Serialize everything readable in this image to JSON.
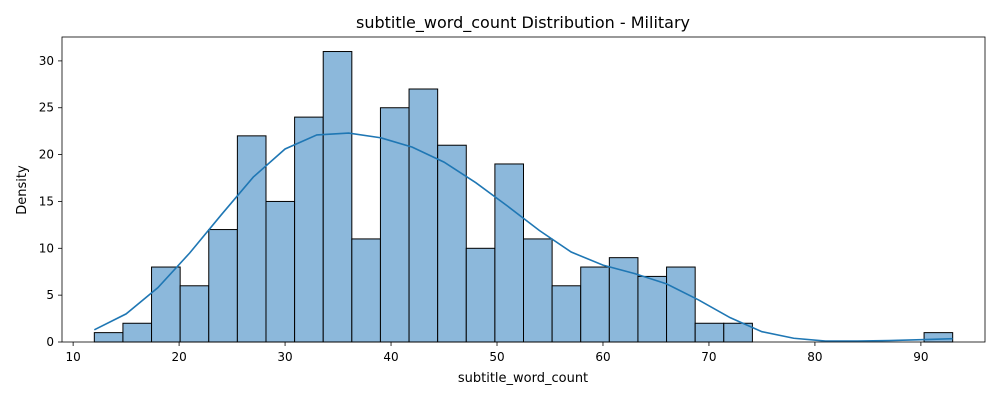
{
  "chart_data": {
    "type": "bar",
    "title": "subtitle_word_count Distribution - Military",
    "xlabel": "subtitle_word_count",
    "ylabel": "Density",
    "xlim": [
      8.95,
      96.05
    ],
    "ylim": [
      0,
      32.55
    ],
    "xticks": [
      10,
      20,
      30,
      40,
      50,
      60,
      70,
      80,
      90
    ],
    "yticks": [
      0,
      5,
      10,
      15,
      20,
      25,
      30
    ],
    "bin_start": 12,
    "bin_width": 2.7,
    "values": [
      1,
      2,
      8,
      6,
      12,
      22,
      15,
      24,
      31,
      11,
      25,
      27,
      21,
      10,
      19,
      11,
      6,
      8,
      9,
      7,
      8,
      2,
      2,
      0,
      0,
      0,
      0,
      0,
      0,
      1
    ],
    "kde": {
      "x": [
        12,
        15,
        18,
        21,
        24,
        27,
        30,
        33,
        36,
        39,
        42,
        45,
        48,
        51,
        54,
        57,
        60,
        63,
        66,
        69,
        72,
        75,
        78,
        81,
        84,
        87,
        90,
        93
      ],
      "y": [
        1.3,
        3.0,
        5.8,
        9.5,
        13.6,
        17.6,
        20.6,
        22.1,
        22.3,
        21.8,
        20.8,
        19.2,
        17.0,
        14.5,
        11.9,
        9.6,
        8.2,
        7.3,
        6.2,
        4.5,
        2.6,
        1.1,
        0.4,
        0.1,
        0.1,
        0.15,
        0.25,
        0.35
      ]
    },
    "colors": {
      "bar": "#8cb8db",
      "edge": "#000000",
      "kde": "#1f77b4"
    },
    "grid": false,
    "legend": "none"
  }
}
